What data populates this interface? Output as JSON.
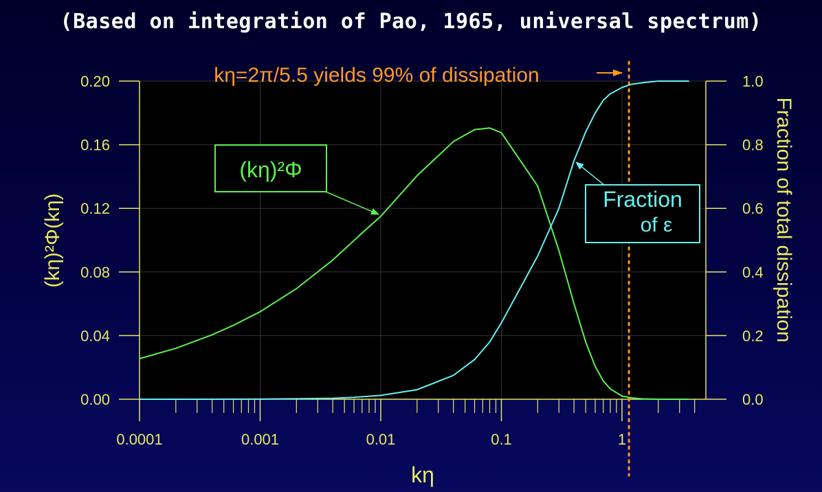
{
  "subtitle": "(Based on integration of Pao, 1965, universal spectrum)",
  "colors": {
    "axis": "#e8e860",
    "spectrum": "#5cf24c",
    "fraction": "#66f0f0",
    "annotation": "#ff9922",
    "plot_bg": "#000000",
    "grid": "#333333"
  },
  "chart_data": {
    "type": "line",
    "x_scale": "log",
    "xlim": [
      0.0001,
      4
    ],
    "xlabel": "kη",
    "ylabel_left": "(kη)²Φ(kη)",
    "ylabel_right": "Fraction of total dissipation",
    "ylim_left": [
      0,
      0.2
    ],
    "ylim_right": [
      0,
      1
    ],
    "x_ticks": [
      "0.0001",
      "0.001",
      "0.01",
      "0.1",
      "1"
    ],
    "y_ticks_left": [
      "0.00",
      "0.04",
      "0.08",
      "0.12",
      "0.16",
      "0.20"
    ],
    "y_ticks_right": [
      "0.0",
      "0.2",
      "0.4",
      "0.6",
      "0.8",
      "1.0"
    ],
    "grid": true,
    "series": [
      {
        "name": "(kη)²Φ",
        "axis": "left",
        "x": [
          0.0001,
          0.0002,
          0.0004,
          0.0006,
          0.001,
          0.002,
          0.004,
          0.007,
          0.01,
          0.02,
          0.04,
          0.06,
          0.08,
          0.1,
          0.2,
          0.3,
          0.4,
          0.5,
          0.6,
          0.7,
          0.8,
          1.0,
          1.2,
          1.5,
          2.0,
          3.0,
          3.6
        ],
        "values": [
          0.0255,
          0.032,
          0.0405,
          0.0465,
          0.055,
          0.0695,
          0.0875,
          0.1045,
          0.115,
          0.1405,
          0.162,
          0.1695,
          0.1705,
          0.1675,
          0.134,
          0.0935,
          0.06,
          0.036,
          0.0205,
          0.0115,
          0.0065,
          0.002,
          0.0008,
          0.0002,
          0.0,
          0.0,
          0.0
        ]
      },
      {
        "name": "Fraction of ε",
        "axis": "right",
        "x": [
          0.0001,
          0.0003,
          0.001,
          0.002,
          0.004,
          0.006,
          0.01,
          0.02,
          0.04,
          0.06,
          0.08,
          0.1,
          0.2,
          0.3,
          0.4,
          0.5,
          0.6,
          0.7,
          0.8,
          1.0,
          1.2,
          1.5,
          2.0,
          3.6
        ],
        "values": [
          0.0,
          0.0,
          0.0005,
          0.0015,
          0.003,
          0.006,
          0.012,
          0.03,
          0.075,
          0.125,
          0.18,
          0.24,
          0.45,
          0.6,
          0.75,
          0.84,
          0.9,
          0.94,
          0.96,
          0.98,
          0.99,
          0.995,
          1.0,
          1.0
        ]
      }
    ],
    "reference_line": {
      "x": 1.142,
      "style": "dotted"
    }
  },
  "annotations": {
    "dissipation_99": "kη=2π/5.5 yields 99% of dissipation",
    "spectrum_box": "(kη)²Φ",
    "fraction_box_line1": "Fraction",
    "fraction_box_line2": "of ε"
  }
}
